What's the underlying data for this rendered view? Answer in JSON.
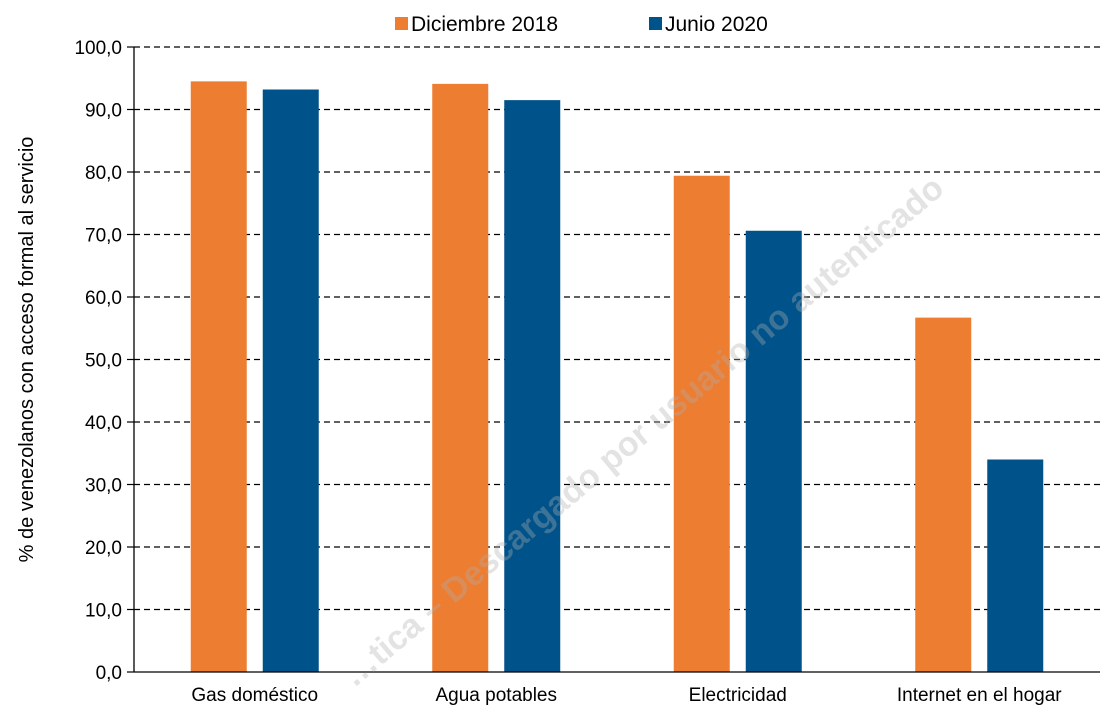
{
  "chart_data": {
    "type": "bar",
    "categories": [
      "Gas doméstico",
      "Agua potables",
      "Electricidad",
      "Internet en el hogar"
    ],
    "series": [
      {
        "name": "Diciembre 2018",
        "color": "#ED7D31",
        "values": [
          94.5,
          94.1,
          79.4,
          56.7
        ]
      },
      {
        "name": "Junio 2020",
        "color": "#00538A",
        "values": [
          93.2,
          91.5,
          70.6,
          34.0
        ]
      }
    ],
    "ylabel": "% de venezolanos con acceso formal al servicio",
    "ylim": [
      0,
      100
    ],
    "yticks": [
      "0,0",
      "10,0",
      "20,0",
      "30,0",
      "40,0",
      "50,0",
      "60,0",
      "70,0",
      "80,0",
      "90,0",
      "100,0"
    ],
    "grid": "horizontal dashed",
    "legend_position": "top-center"
  },
  "watermark": "…tica – Descargado por usuario no autenticado"
}
